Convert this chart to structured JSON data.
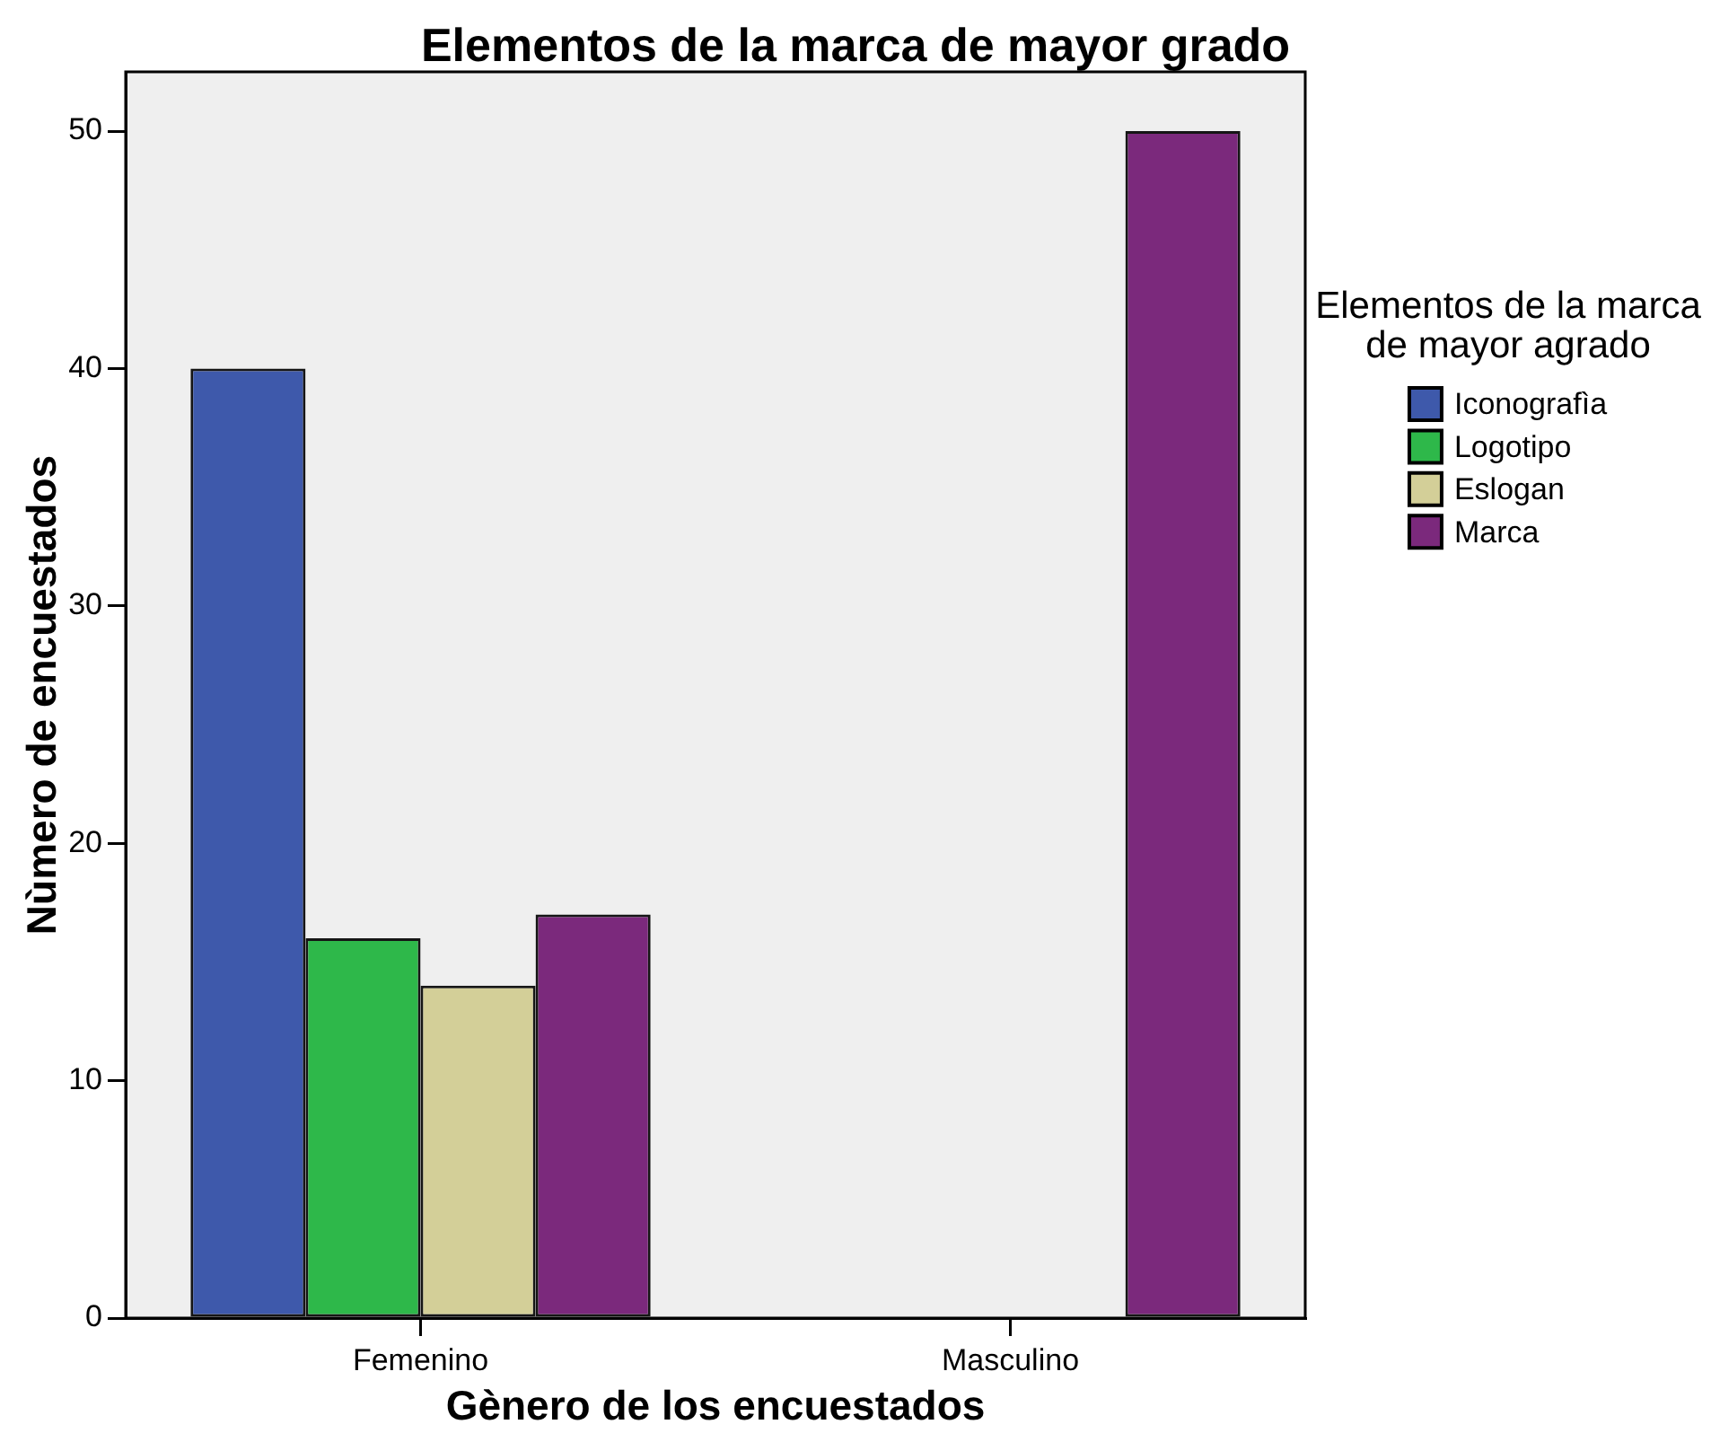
{
  "chart_data": {
    "type": "bar",
    "title": "Elementos de la marca de mayor grado",
    "xlabel": "Gènero de los encuestados",
    "ylabel": "Nùmero de encuestados",
    "legend_title": "Elementos de la marca de mayor agrado",
    "categories": [
      "Femenino",
      "Masculino"
    ],
    "series": [
      {
        "name": "Iconografìa",
        "color": "#3e59ab",
        "values": [
          40,
          null
        ]
      },
      {
        "name": "Logotipo",
        "color": "#2eb84a",
        "values": [
          16,
          null
        ]
      },
      {
        "name": "Eslogan",
        "color": "#d3cf98",
        "values": [
          14,
          null
        ]
      },
      {
        "name": "Marca",
        "color": "#7b297c",
        "values": [
          17,
          50
        ]
      }
    ],
    "ylim": [
      0,
      52.5
    ],
    "yticks": [
      0,
      10,
      20,
      30,
      40,
      50
    ],
    "legend": "right"
  }
}
